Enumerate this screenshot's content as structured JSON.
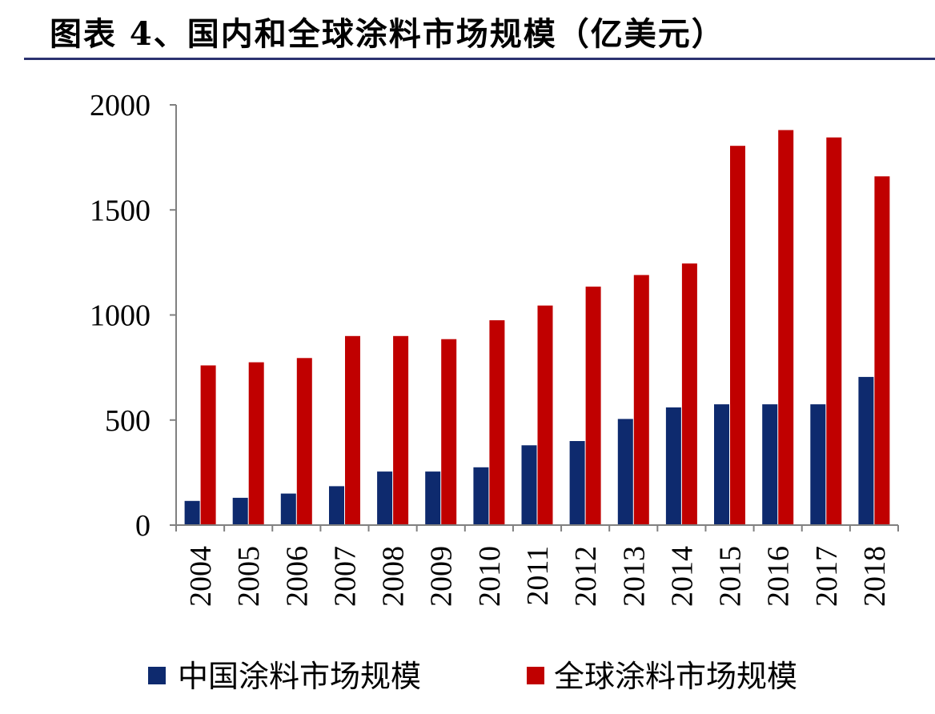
{
  "title": "图表 4、国内和全球涂料市场规模（亿美元）",
  "colors": {
    "china": "#0e2a6e",
    "global": "#c00000",
    "axis": "#808080",
    "title_rule": "#2b3270"
  },
  "chart_data": {
    "type": "bar",
    "title": "图表 4、国内和全球涂料市场规模（亿美元）",
    "xlabel": "",
    "ylabel": "",
    "ylim": [
      0,
      2000
    ],
    "yticks": [
      "0",
      "500",
      "1000",
      "1500",
      "2000"
    ],
    "grid": false,
    "legend_position": "bottom",
    "categories": [
      "2004",
      "2005",
      "2006",
      "2007",
      "2008",
      "2009",
      "2010",
      "2011",
      "2012",
      "2013",
      "2014",
      "2015",
      "2016",
      "2017",
      "2018"
    ],
    "series": [
      {
        "name": "中国涂料市场规模",
        "color": "#0e2a6e",
        "values": [
          115,
          130,
          150,
          185,
          255,
          255,
          275,
          380,
          400,
          505,
          560,
          575,
          575,
          575,
          705
        ]
      },
      {
        "name": "全球涂料市场规模",
        "color": "#c00000",
        "values": [
          760,
          775,
          795,
          900,
          900,
          885,
          975,
          1045,
          1135,
          1190,
          1245,
          1805,
          1880,
          1845,
          1660
        ]
      }
    ]
  }
}
